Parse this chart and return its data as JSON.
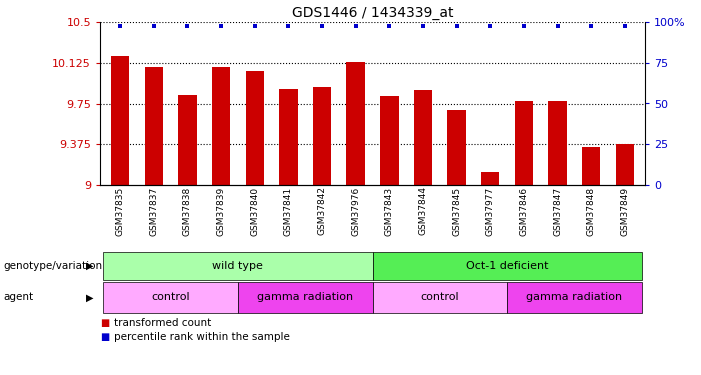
{
  "title": "GDS1446 / 1434339_at",
  "samples": [
    "GSM37835",
    "GSM37837",
    "GSM37838",
    "GSM37839",
    "GSM37840",
    "GSM37841",
    "GSM37842",
    "GSM37976",
    "GSM37843",
    "GSM37844",
    "GSM37845",
    "GSM37977",
    "GSM37846",
    "GSM37847",
    "GSM37848",
    "GSM37849"
  ],
  "bar_values": [
    10.19,
    10.09,
    9.83,
    10.09,
    10.05,
    9.88,
    9.9,
    10.13,
    9.82,
    9.87,
    9.69,
    9.12,
    9.77,
    9.77,
    9.35,
    9.38
  ],
  "bar_color": "#cc0000",
  "dot_color": "#0000cc",
  "ymin": 9.0,
  "ymax": 10.5,
  "yticks": [
    9.0,
    9.375,
    9.75,
    10.125,
    10.5
  ],
  "ytick_labels": [
    "9",
    "9.375",
    "9.75",
    "10.125",
    "10.5"
  ],
  "right_yticks": [
    0,
    25,
    50,
    75,
    100
  ],
  "right_ytick_labels": [
    "0",
    "25",
    "50",
    "75",
    "100%"
  ],
  "genotype_groups": [
    {
      "label": "wild type",
      "start": 0,
      "end": 8,
      "color": "#aaffaa"
    },
    {
      "label": "Oct-1 deficient",
      "start": 8,
      "end": 16,
      "color": "#55ee55"
    }
  ],
  "agent_groups": [
    {
      "label": "control",
      "start": 0,
      "end": 4,
      "color": "#ffaaff"
    },
    {
      "label": "gamma radiation",
      "start": 4,
      "end": 8,
      "color": "#ee44ee"
    },
    {
      "label": "control",
      "start": 8,
      "end": 12,
      "color": "#ffaaff"
    },
    {
      "label": "gamma radiation",
      "start": 12,
      "end": 16,
      "color": "#ee44ee"
    }
  ],
  "legend_items": [
    {
      "label": "transformed count",
      "color": "#cc0000"
    },
    {
      "label": "percentile rank within the sample",
      "color": "#0000cc"
    }
  ],
  "genotype_label": "genotype/variation",
  "agent_label": "agent",
  "bar_width": 0.55
}
